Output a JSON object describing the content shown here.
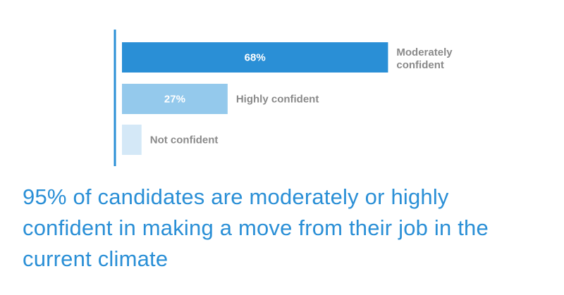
{
  "chart_data": {
    "type": "bar",
    "orientation": "horizontal",
    "title": "",
    "xlabel": "",
    "ylabel": "",
    "xlim": [
      0,
      100
    ],
    "grid": false,
    "categories": [
      "Moderately confident",
      "Highly confident",
      "Not confident"
    ],
    "values": [
      68,
      27,
      5
    ],
    "data_labels": [
      "68%",
      "27%",
      ""
    ],
    "colors": [
      "#2a8fd6",
      "#94c9ec",
      "#d4e8f7"
    ]
  },
  "headline": "95% of candidates are moderately or highly confident in making a move from their job in the current climate"
}
